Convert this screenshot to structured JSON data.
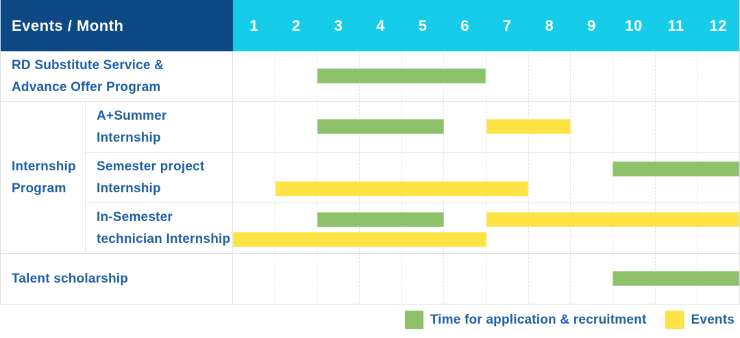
{
  "header": {
    "row_label": "Events / Month",
    "months": [
      "1",
      "2",
      "3",
      "4",
      "5",
      "6",
      "7",
      "8",
      "9",
      "10",
      "11",
      "12"
    ]
  },
  "colors": {
    "header_bg": "#0d4a85",
    "months_bg": "#15cde8",
    "application": "#8dc26a",
    "event": "#fde343",
    "label_text": "#1c5fa5"
  },
  "legend": {
    "items": [
      {
        "kind": "application",
        "label": "Time for application & recruitment"
      },
      {
        "kind": "event",
        "label": "Events"
      }
    ]
  },
  "chart_data": {
    "type": "bar",
    "subtype": "gantt-timeline",
    "x_label": "Month",
    "x_ticks": [
      1,
      2,
      3,
      4,
      5,
      6,
      7,
      8,
      9,
      10,
      11,
      12
    ],
    "bar_kinds": {
      "application": "Time for application & recruitment",
      "event": "Events"
    },
    "group_header": {
      "label": "Internship Program",
      "label_lines": [
        "Internship",
        "Program"
      ],
      "row_indexes": [
        1,
        2,
        3
      ]
    },
    "rows": [
      {
        "label": "RD Substitute Service & Advance Offer Program",
        "label_lines": [
          "RD Substitute Service &",
          "Advance Offer Program"
        ],
        "group": null,
        "bars": [
          {
            "kind": "application",
            "start_month": 3,
            "end_month": 6,
            "lane": "center"
          }
        ]
      },
      {
        "label": "A+Summer Internship",
        "label_lines": [
          "A+Summer",
          "Internship"
        ],
        "group": "Internship Program",
        "bars": [
          {
            "kind": "application",
            "start_month": 3,
            "end_month": 5,
            "lane": "center"
          },
          {
            "kind": "event",
            "start_month": 7,
            "end_month": 8,
            "lane": "center"
          }
        ]
      },
      {
        "label": "Semester project Internship",
        "label_lines": [
          "Semester project",
          "Internship"
        ],
        "group": "Internship Program",
        "bars": [
          {
            "kind": "application",
            "start_month": 10,
            "end_month": 12,
            "lane": "top"
          },
          {
            "kind": "event",
            "start_month": 2,
            "end_month": 7,
            "lane": "bottom"
          }
        ]
      },
      {
        "label": "In-Semester technician Internship",
        "label_lines": [
          "In-Semester",
          "technician Internship"
        ],
        "group": "Internship Program",
        "bars": [
          {
            "kind": "application",
            "start_month": 3,
            "end_month": 5,
            "lane": "top"
          },
          {
            "kind": "event",
            "start_month": 7,
            "end_month": 12,
            "lane": "top"
          },
          {
            "kind": "event",
            "start_month": 1,
            "end_month": 6,
            "lane": "bottom"
          }
        ]
      },
      {
        "label": "Talent scholarship",
        "label_lines": [
          "Talent scholarship"
        ],
        "group": null,
        "bars": [
          {
            "kind": "application",
            "start_month": 10,
            "end_month": 12,
            "lane": "center"
          }
        ]
      }
    ]
  }
}
